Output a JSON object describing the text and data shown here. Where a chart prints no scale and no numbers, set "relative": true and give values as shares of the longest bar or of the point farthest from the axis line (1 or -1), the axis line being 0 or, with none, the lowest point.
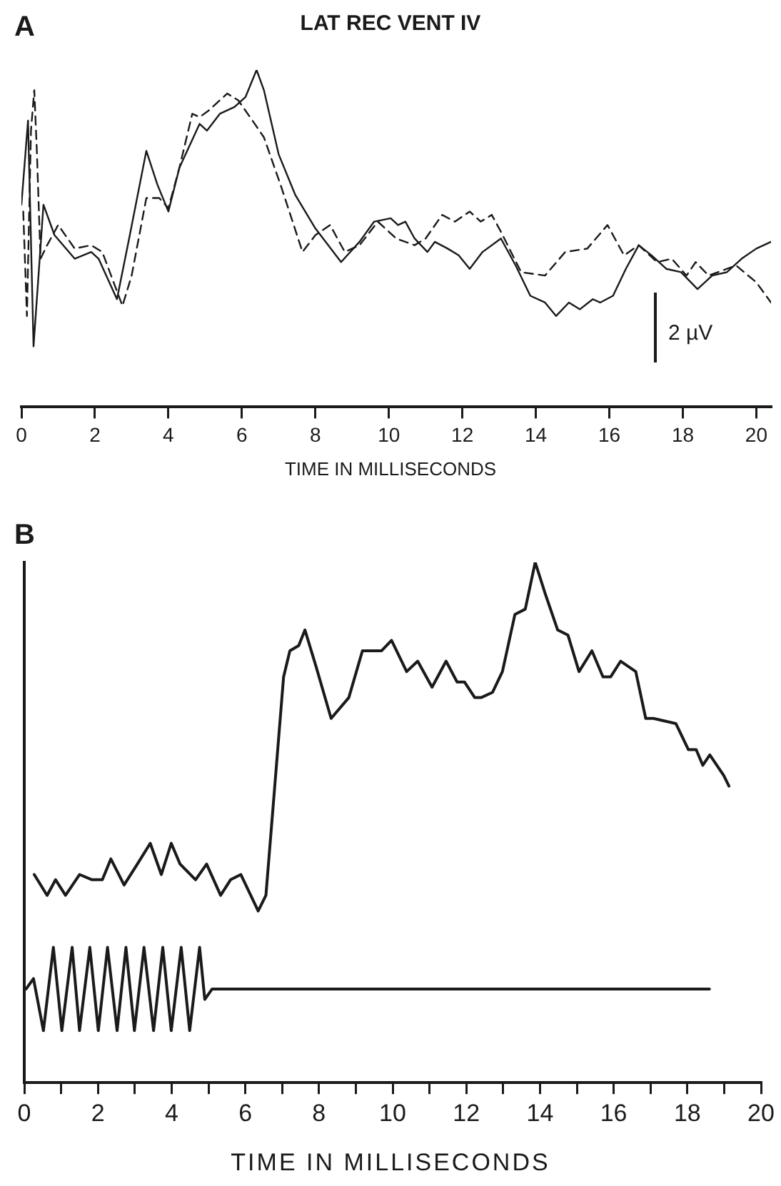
{
  "chart_data": [
    {
      "type": "line",
      "title": "LAT REC VENT IV",
      "xlabel": "TIME IN MILLISECONDS",
      "annotations": [
        "A",
        "2 µV"
      ],
      "relative": true,
      "xlim": [
        0,
        20.4
      ],
      "xticks": [
        0,
        2,
        4,
        6,
        8,
        10,
        12,
        14,
        16,
        18,
        20
      ],
      "marker": "none",
      "series": [
        {
          "color": "#1a1a1a",
          "line_style": "solid",
          "x": [
            0,
            0.18,
            0.33,
            0.6,
            0.9,
            1.45,
            1.9,
            2.1,
            2.6,
            2.95,
            3.4,
            3.7,
            4.0,
            4.3,
            4.85,
            5.05,
            5.4,
            5.8,
            6.1,
            6.4,
            6.6,
            7.0,
            7.45,
            8.0,
            8.7,
            9.2,
            9.6,
            10.05,
            10.25,
            10.45,
            10.7,
            11.05,
            11.25,
            11.6,
            11.9,
            12.2,
            12.55,
            13.05,
            13.45,
            13.85,
            14.25,
            14.55,
            14.9,
            15.2,
            15.55,
            15.75,
            16.1,
            16.45,
            16.8,
            17.15,
            17.55,
            17.95,
            18.4,
            18.8,
            19.2,
            19.6,
            20.0,
            20.4
          ],
          "values": [
            0.6,
            0.85,
            0.18,
            0.6,
            0.51,
            0.44,
            0.46,
            0.44,
            0.32,
            0.51,
            0.76,
            0.66,
            0.58,
            0.71,
            0.84,
            0.82,
            0.87,
            0.89,
            0.92,
            1,
            0.94,
            0.75,
            0.63,
            0.53,
            0.43,
            0.49,
            0.55,
            0.56,
            0.54,
            0.55,
            0.5,
            0.46,
            0.49,
            0.47,
            0.45,
            0.41,
            0.46,
            0.5,
            0.42,
            0.33,
            0.31,
            0.27,
            0.31,
            0.29,
            0.32,
            0.31,
            0.33,
            0.41,
            0.48,
            0.45,
            0.41,
            0.4,
            0.35,
            0.39,
            0.4,
            0.44,
            0.47,
            0.49
          ]
        },
        {
          "color": "#1a1a1a",
          "line_style": "dashed",
          "x": [
            0.05,
            0.15,
            0.26,
            0.35,
            0.42,
            0.52,
            0.7,
            1.0,
            1.45,
            1.9,
            2.2,
            2.75,
            3.0,
            3.4,
            3.75,
            4.0,
            4.3,
            4.65,
            4.85,
            5.1,
            5.6,
            5.9,
            6.35,
            6.6,
            7.05,
            7.65,
            8.0,
            8.4,
            8.8,
            9.2,
            9.7,
            10.2,
            10.7,
            11.0,
            11.45,
            11.8,
            12.2,
            12.5,
            12.8,
            13.05,
            13.6,
            14.25,
            14.8,
            15.4,
            15.95,
            16.4,
            16.8,
            17.3,
            17.7,
            18.1,
            18.35,
            18.7,
            19.45,
            20.0,
            20.4
          ],
          "values": [
            0.58,
            0.27,
            0.82,
            0.94,
            0.76,
            0.44,
            0.48,
            0.54,
            0.47,
            0.48,
            0.46,
            0.3,
            0.39,
            0.62,
            0.62,
            0.59,
            0.71,
            0.87,
            0.86,
            0.88,
            0.93,
            0.91,
            0.84,
            0.8,
            0.66,
            0.46,
            0.51,
            0.54,
            0.46,
            0.48,
            0.55,
            0.5,
            0.48,
            0.5,
            0.57,
            0.55,
            0.58,
            0.55,
            0.57,
            0.52,
            0.4,
            0.39,
            0.46,
            0.47,
            0.54,
            0.45,
            0.48,
            0.43,
            0.44,
            0.39,
            0.43,
            0.39,
            0.42,
            0.37,
            0.31
          ]
        }
      ]
    },
    {
      "type": "line",
      "xlabel": "TIME IN MILLISECONDS",
      "annotations": [
        "B"
      ],
      "relative": true,
      "xlim": [
        0,
        20
      ],
      "xticks": [
        0,
        {
          "value": 1,
          "label": null
        },
        2,
        {
          "value": 3,
          "label": null
        },
        4,
        {
          "value": 5,
          "label": null
        },
        6,
        {
          "value": 7,
          "label": null
        },
        8,
        {
          "value": 9,
          "label": null
        },
        10,
        {
          "value": 11,
          "label": null
        },
        12,
        {
          "value": 13,
          "label": null
        },
        14,
        {
          "value": 15,
          "label": null
        },
        16,
        {
          "value": 17,
          "label": null
        },
        18,
        {
          "value": 19,
          "label": null
        },
        20
      ],
      "tick_labels": "x",
      "marker": "none",
      "series": [
        {
          "color": "#1a1a1a",
          "line_style": "solid",
          "x": [
            0.27,
            0.62,
            0.85,
            1.12,
            1.5,
            1.84,
            2.12,
            2.35,
            2.71,
            3.07,
            3.42,
            3.72,
            3.99,
            4.23,
            4.65,
            4.95,
            5.33,
            5.6,
            5.88,
            6.35,
            6.56,
            6.8,
            7.04,
            7.21,
            7.45,
            7.62,
            7.92,
            8.33,
            8.81,
            9.18,
            9.43,
            9.7,
            9.97,
            10.38,
            10.68,
            11.07,
            11.45,
            11.75,
            11.95,
            12.23,
            12.4,
            12.71,
            12.98,
            13.32,
            13.6,
            13.87,
            14.14,
            14.48,
            14.76,
            15.06,
            15.41,
            15.71,
            15.92,
            16.19,
            16.6,
            16.87,
            17.08,
            17.69,
            18.03,
            18.24,
            18.42,
            18.61,
            18.99,
            19.13
          ],
          "values": [
            0.4,
            0.36,
            0.39,
            0.36,
            0.4,
            0.39,
            0.39,
            0.43,
            0.38,
            0.42,
            0.46,
            0.4,
            0.46,
            0.42,
            0.39,
            0.42,
            0.36,
            0.39,
            0.4,
            0.33,
            0.36,
            0.57,
            0.78,
            0.83,
            0.84,
            0.87,
            0.8,
            0.7,
            0.74,
            0.83,
            0.83,
            0.83,
            0.85,
            0.79,
            0.81,
            0.76,
            0.81,
            0.77,
            0.77,
            0.74,
            0.74,
            0.75,
            0.79,
            0.9,
            0.91,
            1,
            0.94,
            0.87,
            0.86,
            0.79,
            0.83,
            0.78,
            0.78,
            0.81,
            0.79,
            0.7,
            0.7,
            0.69,
            0.64,
            0.64,
            0.61,
            0.63,
            0.59,
            0.57
          ]
        },
        {
          "color": "#1a1a1a",
          "line_style": "solid",
          "x": [
            0.05,
            0.25,
            0.52,
            0.79,
            1.02,
            1.3,
            1.5,
            1.78,
            2.01,
            2.26,
            2.52,
            2.76,
            2.99,
            3.25,
            3.51,
            3.76,
            3.99,
            4.26,
            4.49,
            4.76,
            4.9,
            5.1,
            18.6
          ],
          "values": [
            0.18,
            0.2,
            0.1,
            0.26,
            0.1,
            0.26,
            0.1,
            0.26,
            0.1,
            0.26,
            0.1,
            0.26,
            0.1,
            0.26,
            0.1,
            0.26,
            0.1,
            0.26,
            0.1,
            0.26,
            0.16,
            0.18,
            0.18
          ]
        }
      ]
    }
  ]
}
